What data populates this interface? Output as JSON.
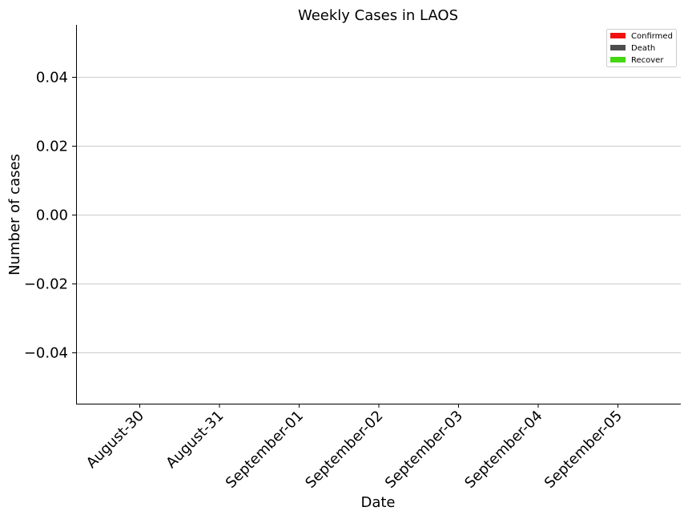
{
  "chart_data": {
    "type": "bar",
    "title": "Weekly Cases in LAOS",
    "xlabel": "Date",
    "ylabel": "Number of cases",
    "categories": [
      "August-30",
      "August-31",
      "September-01",
      "September-02",
      "September-03",
      "September-04",
      "September-05"
    ],
    "series": [
      {
        "name": "Confirmed",
        "color": "#f01010",
        "values": [
          0,
          0,
          0,
          0,
          0,
          0,
          0
        ]
      },
      {
        "name": "Death",
        "color": "#4d4d4d",
        "values": [
          0,
          0,
          0,
          0,
          0,
          0,
          0
        ]
      },
      {
        "name": "Recover",
        "color": "#44d712",
        "values": [
          0,
          0,
          0,
          0,
          0,
          0,
          0
        ]
      }
    ],
    "ylim": [
      -0.055,
      0.055
    ],
    "yticks": [
      0.04,
      0.02,
      0.0,
      -0.02,
      -0.04
    ],
    "ytick_labels": [
      "0.04",
      "0.02",
      "0.00",
      "−0.02",
      "−0.04"
    ],
    "grid": "y",
    "legend": "top-right"
  }
}
